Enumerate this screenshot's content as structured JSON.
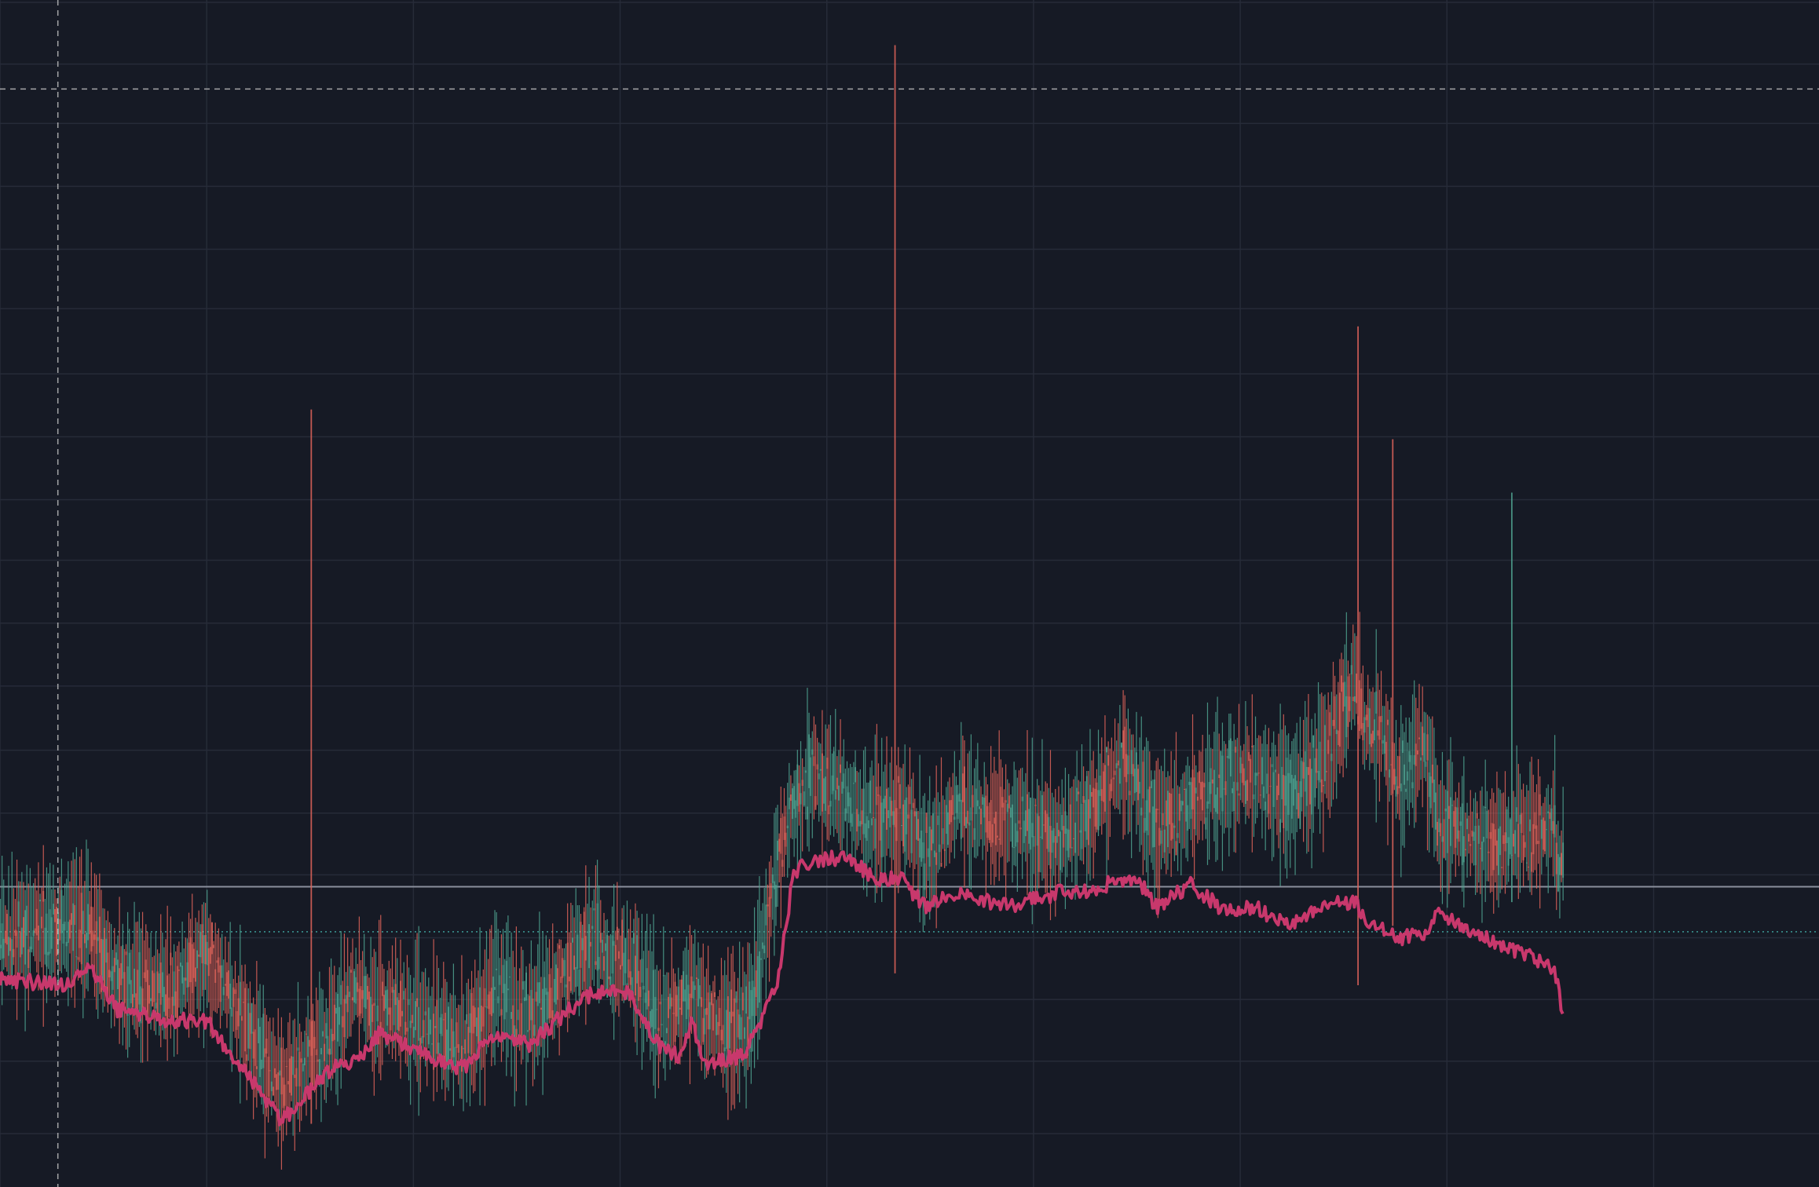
{
  "colors": {
    "background": "#161a25",
    "grid": "#262b38",
    "up_candle": "#4fa390",
    "down_candle": "#e0645a",
    "overlay_line": "#c8386c",
    "crosshair": "#c8c8c8",
    "price_line": "#8a8f9c",
    "dotted_level": "#3c9a96"
  },
  "chart_data": {
    "type": "candlestick",
    "title": "",
    "xlabel": "",
    "ylabel": "",
    "grid": true,
    "legend": "none",
    "x_range": [
      0,
      1100
    ],
    "y_range": [
      0,
      100
    ],
    "vertical_gridlines_x": [
      0,
      125,
      250,
      375,
      500,
      625,
      750,
      875,
      1000
    ],
    "horizontal_gridlines_y": [
      4.5,
      10.6,
      15.8,
      21.0,
      26.3,
      31.5,
      36.8,
      42.2,
      47.5,
      52.8,
      57.9,
      63.2,
      68.5,
      74.0,
      79.0,
      84.3,
      89.6,
      94.6,
      99.8
    ],
    "crosshair": {
      "x": 35,
      "y": 92.5
    },
    "price_line_y": 25.3,
    "dotted_level_y": 21.5,
    "series": [
      {
        "name": "",
        "kind": "candles",
        "anchors_x": [
          0,
          40,
          55,
          70,
          100,
          125,
          140,
          155,
          170,
          200,
          215,
          230,
          260,
          280,
          300,
          320,
          345,
          360,
          380,
          398,
          410,
          418,
          426,
          450,
          470,
          480,
          490,
          510,
          530,
          545,
          560,
          573,
          580,
          597,
          615,
          640,
          660,
          680,
          690,
          700,
          720,
          740,
          760,
          780,
          800,
          820,
          825,
          835,
          845,
          860,
          870,
          900,
          940,
          935,
          945
        ],
        "anchors_y": [
          21,
          22,
          21.5,
          17,
          16,
          20,
          16,
          12,
          8.5,
          13,
          17,
          14,
          11,
          11,
          17,
          13,
          19,
          21,
          15,
          13,
          15,
          17,
          15,
          11.5,
          27.2,
          32.3,
          34.7,
          32.7,
          30.5,
          31.5,
          28.3,
          30.5,
          32.4,
          30.8,
          30.8,
          29.0,
          32.0,
          36.2,
          33.0,
          30.5,
          32.4,
          34.4,
          34.6,
          32.8,
          36.0,
          42.8,
          38.5,
          39.0,
          34.0,
          37.8,
          30.8,
          29.0,
          30.5,
          29.0,
          27.0
        ],
        "spikes": [
          {
            "x": 188,
            "high": 65.5,
            "low": 12
          },
          {
            "x": 541,
            "high": 96.2,
            "low": 18
          },
          {
            "x": 821,
            "high": 72.5,
            "low": 17
          },
          {
            "x": 842,
            "high": 63.0,
            "low": 22
          },
          {
            "x": 914,
            "high": 58.5,
            "low": 24
          }
        ]
      },
      {
        "name": "",
        "kind": "line",
        "x": [
          0,
          40,
          55,
          70,
          100,
          125,
          140,
          155,
          170,
          200,
          215,
          230,
          260,
          280,
          300,
          320,
          345,
          360,
          380,
          398,
          410,
          418,
          426,
          450,
          470,
          480,
          490,
          510,
          530,
          545,
          560,
          573,
          580,
          597,
          615,
          640,
          660,
          680,
          690,
          700,
          720,
          740,
          760,
          780,
          800,
          820,
          825,
          835,
          845,
          860,
          870,
          900,
          940,
          945
        ],
        "y": [
          17.5,
          17.0,
          18.5,
          15.0,
          14.0,
          14.0,
          11.0,
          8.5,
          5.5,
          10.0,
          10.5,
          13.0,
          11.0,
          10.0,
          13.0,
          12.0,
          15.0,
          16.5,
          16.5,
          12.0,
          11.0,
          14.0,
          10.5,
          11.0,
          17.0,
          26.5,
          27.5,
          27.8,
          26.0,
          26.0,
          23.5,
          24.5,
          24.8,
          24.0,
          23.8,
          24.8,
          25.0,
          26.0,
          25.5,
          23.5,
          25.5,
          23.3,
          23.5,
          22.0,
          23.8,
          24.0,
          22.5,
          22.0,
          21.0,
          21.3,
          23.0,
          21.0,
          18.5,
          14.5
        ]
      }
    ]
  }
}
